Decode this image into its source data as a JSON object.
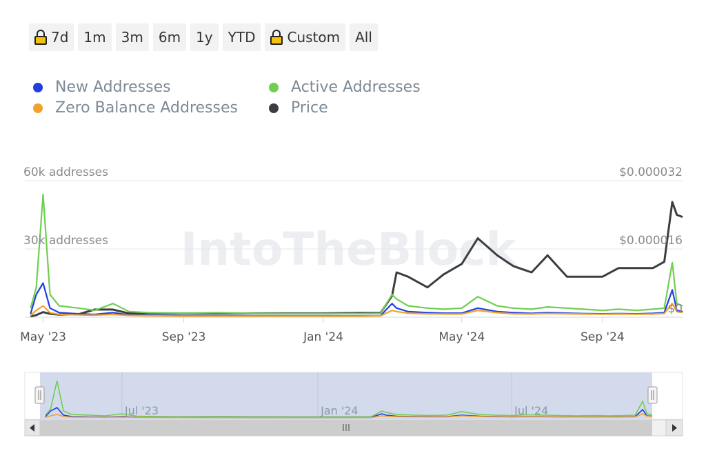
{
  "range_buttons": [
    {
      "label": "7d",
      "locked": true
    },
    {
      "label": "1m",
      "locked": false
    },
    {
      "label": "3m",
      "locked": false
    },
    {
      "label": "6m",
      "locked": false
    },
    {
      "label": "1y",
      "locked": false
    },
    {
      "label": "YTD",
      "locked": false
    },
    {
      "label": "Custom",
      "locked": true
    },
    {
      "label": "All",
      "locked": false
    }
  ],
  "legend": [
    {
      "name": "New Addresses",
      "color": "#1f3fe0"
    },
    {
      "name": "Active Addresses",
      "color": "#6fcf4f"
    },
    {
      "name": "Zero Balance Addresses",
      "color": "#f2a22b"
    },
    {
      "name": "Price",
      "color": "#3a3d42"
    }
  ],
  "watermark": "IntoTheBlock",
  "axes": {
    "left_top": "60k addresses",
    "left_mid": "30k addresses",
    "right_top": "$0.000032",
    "right_mid": "$0.000016",
    "right_bottom": "$0"
  },
  "chart_data": {
    "type": "line",
    "x_ticks": [
      "May '23",
      "Sep '23",
      "Jan '24",
      "May '24",
      "Sep '24"
    ],
    "navigator_ticks": [
      "Jul '23",
      "Jan '24",
      "Jul '24"
    ],
    "y_left": {
      "label": "addresses",
      "ylim": [
        0,
        60000
      ]
    },
    "y_right": {
      "label": "price (USD)",
      "ylim": [
        0,
        3.2e-05
      ]
    },
    "x": [
      "2023-04-20",
      "2023-04-25",
      "2023-05-01",
      "2023-05-07",
      "2023-05-15",
      "2023-06-01",
      "2023-06-15",
      "2023-07-01",
      "2023-07-15",
      "2023-08-01",
      "2023-09-01",
      "2023-10-01",
      "2023-11-01",
      "2023-12-01",
      "2024-01-01",
      "2024-02-01",
      "2024-02-20",
      "2024-03-01",
      "2024-03-05",
      "2024-03-15",
      "2024-04-01",
      "2024-04-15",
      "2024-05-01",
      "2024-05-15",
      "2024-06-01",
      "2024-06-15",
      "2024-07-01",
      "2024-07-15",
      "2024-08-01",
      "2024-08-15",
      "2024-09-01",
      "2024-09-15",
      "2024-10-01",
      "2024-10-15",
      "2024-10-25",
      "2024-11-01",
      "2024-11-05",
      "2024-11-10"
    ],
    "series": [
      {
        "name": "Active Addresses",
        "axis": "left",
        "values": [
          4000,
          13000,
          54000,
          10000,
          5000,
          4000,
          3000,
          6000,
          2500,
          2000,
          1800,
          2000,
          1700,
          1600,
          1600,
          1600,
          1700,
          10000,
          8000,
          5000,
          4000,
          3500,
          4000,
          9000,
          5000,
          4000,
          3500,
          4500,
          4000,
          3500,
          3000,
          3500,
          3000,
          3500,
          4000,
          24000,
          6000,
          5000
        ]
      },
      {
        "name": "New Addresses",
        "axis": "left",
        "values": [
          1500,
          10000,
          15000,
          4000,
          2000,
          1500,
          1200,
          2000,
          1000,
          800,
          700,
          700,
          600,
          600,
          600,
          600,
          700,
          6000,
          4000,
          2500,
          2000,
          1800,
          1800,
          4000,
          2500,
          2000,
          1700,
          2000,
          1800,
          1600,
          1500,
          1600,
          1500,
          1700,
          2000,
          12000,
          3000,
          2500
        ]
      },
      {
        "name": "Zero Balance Addresses",
        "axis": "left",
        "values": [
          800,
          3000,
          5000,
          2000,
          1200,
          1000,
          900,
          1200,
          800,
          600,
          500,
          500,
          500,
          500,
          500,
          500,
          600,
          3000,
          2500,
          1800,
          1500,
          1400,
          1400,
          3000,
          2000,
          1500,
          1400,
          1600,
          1500,
          1400,
          1300,
          1400,
          1300,
          1400,
          1600,
          6000,
          2500,
          2000
        ]
      },
      {
        "name": "Price",
        "axis": "right",
        "values": [
          2e-07,
          5e-07,
          1.2e-06,
          8e-07,
          6e-07,
          7e-07,
          1.8e-06,
          1.8e-06,
          9e-07,
          9e-07,
          9e-07,
          9e-07,
          9e-07,
          9e-07,
          9e-07,
          1e-06,
          1e-06,
          5e-06,
          1.05e-05,
          9.5e-06,
          7e-06,
          1e-05,
          1.25e-05,
          1.85e-05,
          1.45e-05,
          1.2e-05,
          1.05e-05,
          1.45e-05,
          9.5e-06,
          9.5e-06,
          9.5e-06,
          1.15e-05,
          1.15e-05,
          1.15e-05,
          1.3e-05,
          2.7e-05,
          2.4e-05,
          2.35e-05
        ]
      }
    ]
  }
}
